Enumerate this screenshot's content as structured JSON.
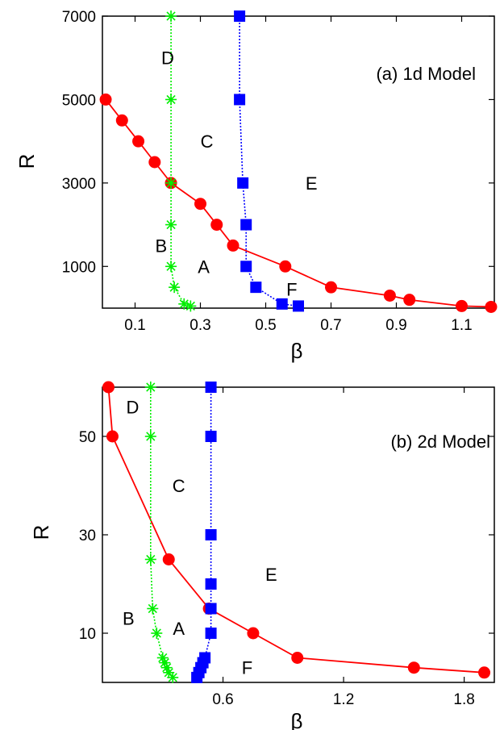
{
  "chart_data": [
    {
      "type": "line",
      "title": "(a) 1d Model",
      "xlabel": "β",
      "ylabel": "R",
      "xlim": [
        0,
        1.2
      ],
      "ylim": [
        0,
        7000
      ],
      "xticks": [
        0.1,
        0.3,
        0.5,
        0.7,
        0.9,
        1.1
      ],
      "xtick_labels": [
        "0.1",
        "0.3",
        "0.5",
        "0.7",
        "0.9",
        "1.1"
      ],
      "yticks": [
        1000,
        3000,
        5000,
        7000
      ],
      "ytick_labels": [
        "1000",
        "3000",
        "5000",
        "7000"
      ],
      "grid": false,
      "series": [
        {
          "marker": "circle",
          "color": "#ff0000",
          "line_style": "solid",
          "points": [
            [
              0.01,
              5000
            ],
            [
              0.06,
              4500
            ],
            [
              0.11,
              4000
            ],
            [
              0.16,
              3500
            ],
            [
              0.21,
              3000
            ],
            [
              0.3,
              2500
            ],
            [
              0.35,
              2000
            ],
            [
              0.4,
              1500
            ],
            [
              0.56,
              1000
            ],
            [
              0.7,
              500
            ],
            [
              0.88,
              300
            ],
            [
              0.94,
              200
            ],
            [
              1.1,
              50
            ],
            [
              1.19,
              30
            ]
          ]
        },
        {
          "marker": "asterisk",
          "color": "#00ee00",
          "line_style": "dotted",
          "points": [
            [
              0.21,
              7000
            ],
            [
              0.21,
              5000
            ],
            [
              0.21,
              3000
            ],
            [
              0.21,
              2000
            ],
            [
              0.21,
              1000
            ],
            [
              0.22,
              500
            ],
            [
              0.25,
              100
            ],
            [
              0.27,
              50
            ]
          ]
        },
        {
          "marker": "square",
          "color": "#0000ff",
          "line_style": "dotted",
          "points": [
            [
              0.42,
              7000
            ],
            [
              0.42,
              5000
            ],
            [
              0.43,
              3000
            ],
            [
              0.44,
              2000
            ],
            [
              0.44,
              1000
            ],
            [
              0.47,
              500
            ],
            [
              0.55,
              100
            ],
            [
              0.6,
              50
            ]
          ]
        }
      ],
      "region_labels": [
        {
          "text": "D",
          "x": 0.2,
          "y": 6000
        },
        {
          "text": "C",
          "x": 0.32,
          "y": 4000
        },
        {
          "text": "E",
          "x": 0.64,
          "y": 3000
        },
        {
          "text": "B",
          "x": 0.18,
          "y": 1500
        },
        {
          "text": "A",
          "x": 0.31,
          "y": 1000
        },
        {
          "text": "F",
          "x": 0.58,
          "y": 450
        }
      ]
    },
    {
      "type": "line",
      "title": "(b) 2d Model",
      "xlabel": "β",
      "ylabel": "R",
      "xlim": [
        0,
        1.95
      ],
      "ylim": [
        0,
        60
      ],
      "xticks": [
        0.6,
        1.2,
        1.8
      ],
      "xtick_labels": [
        "0.6",
        "1.2",
        "1.8"
      ],
      "yticks": [
        10,
        30,
        50
      ],
      "ytick_labels": [
        "10",
        "30",
        "50"
      ],
      "grid": false,
      "series": [
        {
          "marker": "circle",
          "color": "#ff0000",
          "line_style": "solid",
          "points": [
            [
              0.03,
              60
            ],
            [
              0.05,
              50
            ],
            [
              0.33,
              25
            ],
            [
              0.53,
              15
            ],
            [
              0.75,
              10
            ],
            [
              0.97,
              5
            ],
            [
              1.55,
              3
            ],
            [
              1.9,
              2
            ]
          ]
        },
        {
          "marker": "asterisk",
          "color": "#00ee00",
          "line_style": "dotted",
          "points": [
            [
              0.24,
              60
            ],
            [
              0.24,
              50
            ],
            [
              0.24,
              25
            ],
            [
              0.25,
              15
            ],
            [
              0.27,
              10
            ],
            [
              0.3,
              5
            ],
            [
              0.31,
              4
            ],
            [
              0.32,
              3
            ],
            [
              0.33,
              2
            ],
            [
              0.35,
              1
            ]
          ]
        },
        {
          "marker": "square",
          "color": "#0000ff",
          "line_style": "dotted",
          "points": [
            [
              0.54,
              60
            ],
            [
              0.54,
              50
            ],
            [
              0.54,
              30
            ],
            [
              0.54,
              20
            ],
            [
              0.54,
              15
            ],
            [
              0.54,
              10
            ],
            [
              0.51,
              5
            ],
            [
              0.5,
              4
            ],
            [
              0.49,
              3
            ],
            [
              0.48,
              2
            ],
            [
              0.47,
              1
            ]
          ]
        }
      ],
      "region_labels": [
        {
          "text": "D",
          "x": 0.15,
          "y": 56
        },
        {
          "text": "C",
          "x": 0.38,
          "y": 40
        },
        {
          "text": "E",
          "x": 0.84,
          "y": 22
        },
        {
          "text": "B",
          "x": 0.13,
          "y": 13
        },
        {
          "text": "A",
          "x": 0.38,
          "y": 11
        },
        {
          "text": "F",
          "x": 0.72,
          "y": 3
        }
      ]
    }
  ]
}
